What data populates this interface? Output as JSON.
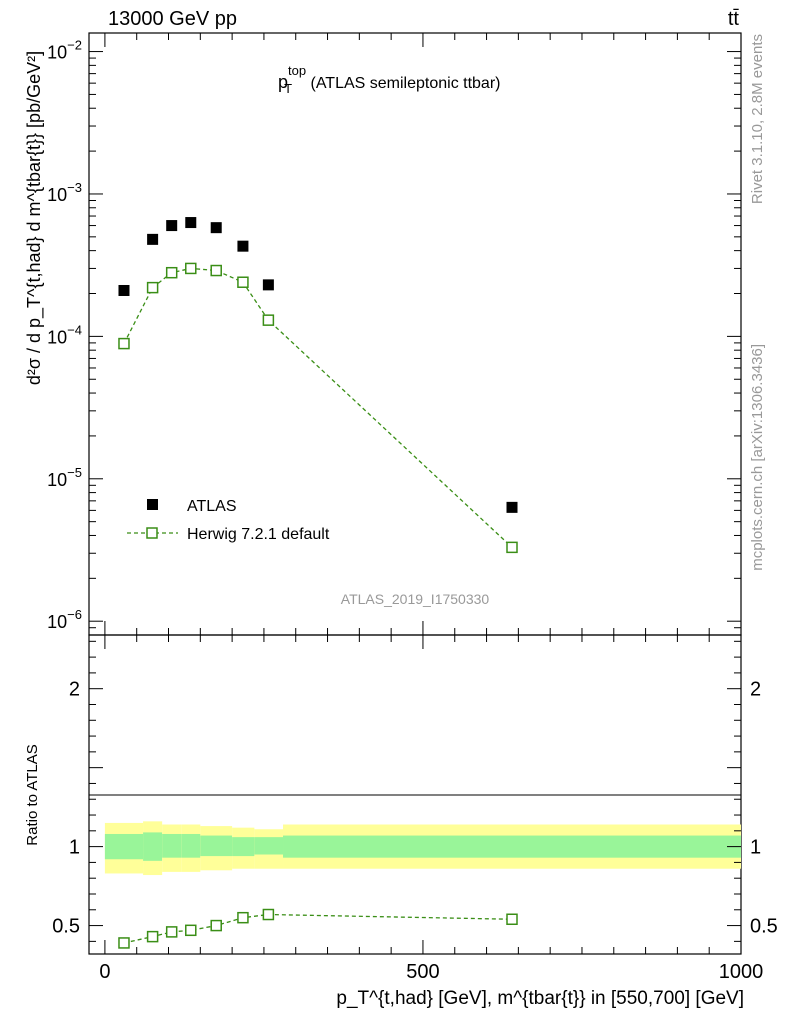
{
  "header": {
    "energy_label": "13000 GeV pp",
    "process_label": "tt̄"
  },
  "side_labels": {
    "rivet": "Rivet 3.1.10,  2.8M events",
    "mcplots": "mcplots.cern.ch [arXiv:1306.3436]"
  },
  "plot_title": {
    "main": "p",
    "sup": "top",
    "sub": "T",
    "rest": " (ATLAS semileptonic ttbar)"
  },
  "analysis_id": "ATLAS_2019_I1750330",
  "axes": {
    "y_top_label": "d²σ / d p_T^{t,had} d m^{tbar{t}} [pb/GeV²]",
    "y_top_ticks": [
      {
        "base": "10",
        "exp": "−2",
        "value": 0.01
      },
      {
        "base": "10",
        "exp": "−3",
        "value": 0.001
      },
      {
        "base": "10",
        "exp": "−4",
        "value": 0.0001
      },
      {
        "base": "10",
        "exp": "−5",
        "value": 1e-05
      },
      {
        "base": "10",
        "exp": "−6",
        "value": 1e-06
      }
    ],
    "y_bottom_label": "Ratio to ATLAS",
    "y_bottom_ticks": [
      {
        "label": "2",
        "value": 2
      },
      {
        "label": "1",
        "value": 1
      },
      {
        "label": "0.5",
        "value": 0.5
      }
    ],
    "x_label": "p_T^{t,had} [GeV], m^{tbar{t}} in [550,700] [GeV]",
    "x_ticks": [
      {
        "label": "0",
        "value": 0
      },
      {
        "label": "500",
        "value": 500
      },
      {
        "label": "1000",
        "value": 1000
      }
    ]
  },
  "legend": {
    "data_label": "ATLAS",
    "mc_label": "Herwig 7.2.1 default"
  },
  "colors": {
    "data": "#000000",
    "mc": "#3a8e16",
    "band_inner": "#99f599",
    "band_outer": "#ffff99"
  },
  "chart_data": {
    "type": "scatter",
    "title": "p_T^top (ATLAS semileptonic ttbar)",
    "xlabel": "p_T^{t,had} [GeV], m^{tbar{t}} in [550,700] [GeV]",
    "ylabel": "d²σ / d p_T^{t,had} d m^{tbar{t}} [pb/GeV²]",
    "xlim": [
      -25,
      1000
    ],
    "ylim": [
      8e-07,
      0.0135
    ],
    "ratio_ylim": [
      0.32,
      2.34
    ],
    "series": [
      {
        "name": "ATLAS",
        "x": [
          30,
          75,
          105,
          135,
          175,
          217,
          257,
          640
        ],
        "y": [
          0.00021,
          0.00048,
          0.0006,
          0.00063,
          0.00058,
          0.00043,
          0.00023,
          6.3e-06
        ]
      },
      {
        "name": "Herwig 7.2.1 default",
        "x": [
          30,
          75,
          105,
          135,
          175,
          217,
          257,
          640
        ],
        "y": [
          8.9e-05,
          0.00022,
          0.00028,
          0.0003,
          0.00029,
          0.00024,
          0.00013,
          3.3e-06
        ]
      }
    ],
    "ratio": {
      "name": "Herwig 7.2.1 default / ATLAS",
      "x": [
        30,
        75,
        105,
        135,
        175,
        217,
        257,
        640
      ],
      "y": [
        0.39,
        0.43,
        0.46,
        0.47,
        0.5,
        0.55,
        0.57,
        0.54
      ]
    },
    "bands": [
      {
        "x0": 0,
        "x1": 60,
        "inner": [
          0.92,
          1.08
        ],
        "outer": [
          0.83,
          1.15
        ]
      },
      {
        "x0": 60,
        "x1": 90,
        "inner": [
          0.91,
          1.09
        ],
        "outer": [
          0.82,
          1.16
        ]
      },
      {
        "x0": 90,
        "x1": 120,
        "inner": [
          0.93,
          1.08
        ],
        "outer": [
          0.84,
          1.14
        ]
      },
      {
        "x0": 120,
        "x1": 150,
        "inner": [
          0.93,
          1.08
        ],
        "outer": [
          0.84,
          1.14
        ]
      },
      {
        "x0": 150,
        "x1": 200,
        "inner": [
          0.94,
          1.07
        ],
        "outer": [
          0.85,
          1.13
        ]
      },
      {
        "x0": 200,
        "x1": 235,
        "inner": [
          0.94,
          1.06
        ],
        "outer": [
          0.86,
          1.12
        ]
      },
      {
        "x0": 235,
        "x1": 280,
        "inner": [
          0.95,
          1.06
        ],
        "outer": [
          0.86,
          1.11
        ]
      },
      {
        "x0": 280,
        "x1": 1000,
        "inner": [
          0.93,
          1.07
        ],
        "outer": [
          0.86,
          1.14
        ]
      }
    ]
  }
}
